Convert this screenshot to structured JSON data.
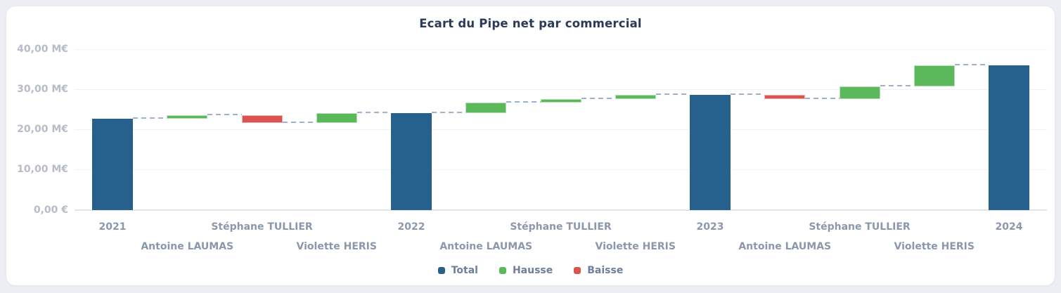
{
  "card": {
    "name": "pipe-gap-chart-card"
  },
  "chart_data": {
    "type": "bar",
    "subtype": "waterfall",
    "title": "Ecart du Pipe net par commercial",
    "xlabel": "",
    "ylabel": "",
    "ylim": [
      0,
      40
    ],
    "grid": true,
    "legend_position": "bottom",
    "y_ticks": [
      {
        "v": 40,
        "label": "40,00 M€"
      },
      {
        "v": 30,
        "label": "30,00 M€"
      },
      {
        "v": 20,
        "label": "20,00 M€"
      },
      {
        "v": 10,
        "label": "10,00 M€"
      },
      {
        "v": 0,
        "label": "0,00 €"
      }
    ],
    "columns": [
      {
        "label": "2021",
        "series": "total",
        "start": 0,
        "end": 22.7
      },
      {
        "label": "Antoine LAUMAS",
        "series": "hausse",
        "start": 22.7,
        "end": 23.6
      },
      {
        "label": "Stéphane TULLIER",
        "series": "baisse",
        "start": 23.6,
        "end": 21.6
      },
      {
        "label": "Violette HERIS",
        "series": "hausse",
        "start": 21.6,
        "end": 24.0
      },
      {
        "label": "2022",
        "series": "total",
        "start": 0,
        "end": 24.0
      },
      {
        "label": "Antoine LAUMAS",
        "series": "hausse",
        "start": 24.0,
        "end": 26.6
      },
      {
        "label": "Stéphane TULLIER",
        "series": "hausse",
        "start": 26.6,
        "end": 27.5
      },
      {
        "label": "Violette HERIS",
        "series": "hausse",
        "start": 27.5,
        "end": 28.5
      },
      {
        "label": "2023",
        "series": "total",
        "start": 0,
        "end": 28.5
      },
      {
        "label": "Antoine LAUMAS",
        "series": "baisse",
        "start": 28.5,
        "end": 27.6
      },
      {
        "label": "Stéphane TULLIER",
        "series": "hausse",
        "start": 27.6,
        "end": 30.7
      },
      {
        "label": "Violette HERIS",
        "series": "hausse",
        "start": 30.7,
        "end": 35.9
      },
      {
        "label": "2024",
        "series": "total",
        "start": 0,
        "end": 35.9
      }
    ],
    "legend": [
      {
        "key": "total",
        "label": "Total"
      },
      {
        "key": "hausse",
        "label": "Hausse"
      },
      {
        "key": "baisse",
        "label": "Baisse"
      }
    ],
    "colors": {
      "total": "#26618e",
      "hausse": "#5bb95c",
      "baisse": "#d95350",
      "connector": "#9fb0ca"
    }
  }
}
